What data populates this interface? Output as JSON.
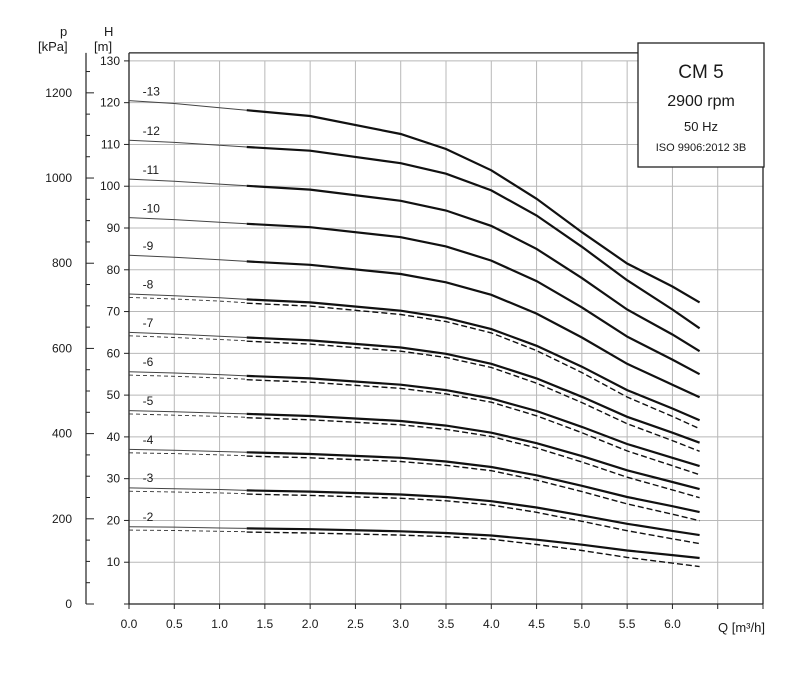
{
  "chart_data": {
    "type": "line",
    "legend_box": {
      "title": "CM 5",
      "speed": "2900 rpm",
      "frequency": "50 Hz",
      "standard": "ISO 9906:2012 3B"
    },
    "xlabel": "Q [m³/h]",
    "ylabel_left": "p\n[kPa]",
    "ylabel": "H\n[m]",
    "xlim": [
      0,
      7.0
    ],
    "ylim": [
      0,
      130
    ],
    "p_lim": [
      0,
      1275
    ],
    "x_ticks": [
      "0.0",
      "0.5",
      "1.0",
      "1.5",
      "2.0",
      "2.5",
      "3.0",
      "3.5",
      "4.0",
      "4.5",
      "5.0",
      "5.5",
      "6.0"
    ],
    "h_ticks": [
      "0",
      "10",
      "20",
      "30",
      "40",
      "50",
      "60",
      "70",
      "80",
      "90",
      "100",
      "110",
      "120",
      "130"
    ],
    "p_ticks": [
      "0",
      "200",
      "400",
      "600",
      "800",
      "1000",
      "1200"
    ],
    "grid": true,
    "x_min_recommended": 1.3,
    "x_max": 6.3,
    "series": [
      {
        "name": "-13",
        "points": [
          [
            0,
            120.5
          ],
          [
            0.5,
            119.8
          ],
          [
            1.0,
            118.8
          ],
          [
            1.3,
            118.2
          ],
          [
            2.0,
            116.8
          ],
          [
            3.0,
            112.5
          ],
          [
            3.5,
            108.9
          ],
          [
            4.0,
            103.8
          ],
          [
            4.5,
            97.0
          ],
          [
            5.0,
            89.0
          ],
          [
            5.5,
            81.5
          ],
          [
            6.0,
            76.0
          ],
          [
            6.3,
            72.2
          ]
        ],
        "dashed": false
      },
      {
        "name": "-12",
        "points": [
          [
            0,
            111.0
          ],
          [
            0.5,
            110.5
          ],
          [
            1.0,
            109.8
          ],
          [
            1.3,
            109.4
          ],
          [
            2.0,
            108.5
          ],
          [
            3.0,
            105.5
          ],
          [
            3.5,
            103.0
          ],
          [
            4.0,
            99.0
          ],
          [
            4.5,
            93.0
          ],
          [
            5.0,
            85.5
          ],
          [
            5.5,
            77.5
          ],
          [
            6.0,
            70.5
          ],
          [
            6.3,
            66.0
          ]
        ],
        "dashed": false
      },
      {
        "name": "-11",
        "points": [
          [
            0,
            101.7
          ],
          [
            0.5,
            101.2
          ],
          [
            1.0,
            100.5
          ],
          [
            1.3,
            100.1
          ],
          [
            2.0,
            99.2
          ],
          [
            3.0,
            96.5
          ],
          [
            3.5,
            94.2
          ],
          [
            4.0,
            90.5
          ],
          [
            4.5,
            85.0
          ],
          [
            5.0,
            78.0
          ],
          [
            5.5,
            70.5
          ],
          [
            6.0,
            64.5
          ],
          [
            6.3,
            60.5
          ]
        ],
        "dashed": false
      },
      {
        "name": "-10",
        "points": [
          [
            0,
            92.5
          ],
          [
            0.5,
            92.0
          ],
          [
            1.0,
            91.4
          ],
          [
            1.3,
            91.0
          ],
          [
            2.0,
            90.2
          ],
          [
            3.0,
            87.8
          ],
          [
            3.5,
            85.6
          ],
          [
            4.0,
            82.2
          ],
          [
            4.5,
            77.3
          ],
          [
            5.0,
            71.0
          ],
          [
            5.5,
            64.0
          ],
          [
            6.0,
            58.5
          ],
          [
            6.3,
            55.0
          ]
        ],
        "dashed": false
      },
      {
        "name": "-9",
        "points": [
          [
            0,
            83.5
          ],
          [
            0.5,
            83.0
          ],
          [
            1.0,
            82.4
          ],
          [
            1.3,
            82.0
          ],
          [
            2.0,
            81.2
          ],
          [
            3.0,
            79.0
          ],
          [
            3.5,
            77.0
          ],
          [
            4.0,
            74.0
          ],
          [
            4.5,
            69.5
          ],
          [
            5.0,
            63.8
          ],
          [
            5.5,
            57.5
          ],
          [
            6.0,
            52.5
          ],
          [
            6.3,
            49.5
          ]
        ],
        "dashed": false
      },
      {
        "name": "-8",
        "points": [
          [
            0,
            74.2
          ],
          [
            0.5,
            73.8
          ],
          [
            1.0,
            73.3
          ],
          [
            1.3,
            72.9
          ],
          [
            2.0,
            72.2
          ],
          [
            3.0,
            70.2
          ],
          [
            3.5,
            68.5
          ],
          [
            4.0,
            65.8
          ],
          [
            4.5,
            61.8
          ],
          [
            5.0,
            56.8
          ],
          [
            5.5,
            51.2
          ],
          [
            6.0,
            46.8
          ],
          [
            6.3,
            44.0
          ]
        ],
        "dashed": true
      },
      {
        "name": "-7",
        "points": [
          [
            0,
            65.0
          ],
          [
            0.5,
            64.6
          ],
          [
            1.0,
            64.1
          ],
          [
            1.3,
            63.8
          ],
          [
            2.0,
            63.1
          ],
          [
            3.0,
            61.4
          ],
          [
            3.5,
            59.9
          ],
          [
            4.0,
            57.5
          ],
          [
            4.5,
            54.0
          ],
          [
            5.0,
            49.6
          ],
          [
            5.5,
            44.8
          ],
          [
            6.0,
            41.0
          ],
          [
            6.3,
            38.6
          ]
        ],
        "dashed": true
      },
      {
        "name": "-6",
        "points": [
          [
            0,
            55.6
          ],
          [
            0.5,
            55.3
          ],
          [
            1.0,
            54.9
          ],
          [
            1.3,
            54.6
          ],
          [
            2.0,
            54.0
          ],
          [
            3.0,
            52.5
          ],
          [
            3.5,
            51.2
          ],
          [
            4.0,
            49.2
          ],
          [
            4.5,
            46.2
          ],
          [
            5.0,
            42.4
          ],
          [
            5.5,
            38.3
          ],
          [
            6.0,
            35.0
          ],
          [
            6.3,
            33.0
          ]
        ],
        "dashed": true
      },
      {
        "name": "-5",
        "points": [
          [
            0,
            46.3
          ],
          [
            0.5,
            46.0
          ],
          [
            1.0,
            45.7
          ],
          [
            1.3,
            45.5
          ],
          [
            2.0,
            45.0
          ],
          [
            3.0,
            43.8
          ],
          [
            3.5,
            42.7
          ],
          [
            4.0,
            41.0
          ],
          [
            4.5,
            38.5
          ],
          [
            5.0,
            35.4
          ],
          [
            5.5,
            32.0
          ],
          [
            6.0,
            29.2
          ],
          [
            6.3,
            27.5
          ]
        ],
        "dashed": true
      },
      {
        "name": "-4",
        "points": [
          [
            0,
            37.0
          ],
          [
            0.5,
            36.8
          ],
          [
            1.0,
            36.5
          ],
          [
            1.3,
            36.3
          ],
          [
            2.0,
            35.9
          ],
          [
            3.0,
            35.0
          ],
          [
            3.5,
            34.1
          ],
          [
            4.0,
            32.8
          ],
          [
            4.5,
            30.8
          ],
          [
            5.0,
            28.3
          ],
          [
            5.5,
            25.6
          ],
          [
            6.0,
            23.4
          ],
          [
            6.3,
            22.0
          ]
        ],
        "dashed": true
      },
      {
        "name": "-3",
        "points": [
          [
            0,
            27.8
          ],
          [
            0.5,
            27.6
          ],
          [
            1.0,
            27.4
          ],
          [
            1.3,
            27.2
          ],
          [
            2.0,
            26.9
          ],
          [
            3.0,
            26.2
          ],
          [
            3.5,
            25.6
          ],
          [
            4.0,
            24.6
          ],
          [
            4.5,
            23.1
          ],
          [
            5.0,
            21.2
          ],
          [
            5.5,
            19.2
          ],
          [
            6.0,
            17.5
          ],
          [
            6.3,
            16.5
          ]
        ],
        "dashed": true
      },
      {
        "name": "-2",
        "points": [
          [
            0,
            18.5
          ],
          [
            0.5,
            18.4
          ],
          [
            1.0,
            18.2
          ],
          [
            1.3,
            18.1
          ],
          [
            2.0,
            17.9
          ],
          [
            3.0,
            17.4
          ],
          [
            3.5,
            17.0
          ],
          [
            4.0,
            16.4
          ],
          [
            4.5,
            15.4
          ],
          [
            5.0,
            14.2
          ],
          [
            5.5,
            12.8
          ],
          [
            6.0,
            11.7
          ],
          [
            6.3,
            11.0
          ]
        ],
        "dashed": true
      }
    ]
  }
}
